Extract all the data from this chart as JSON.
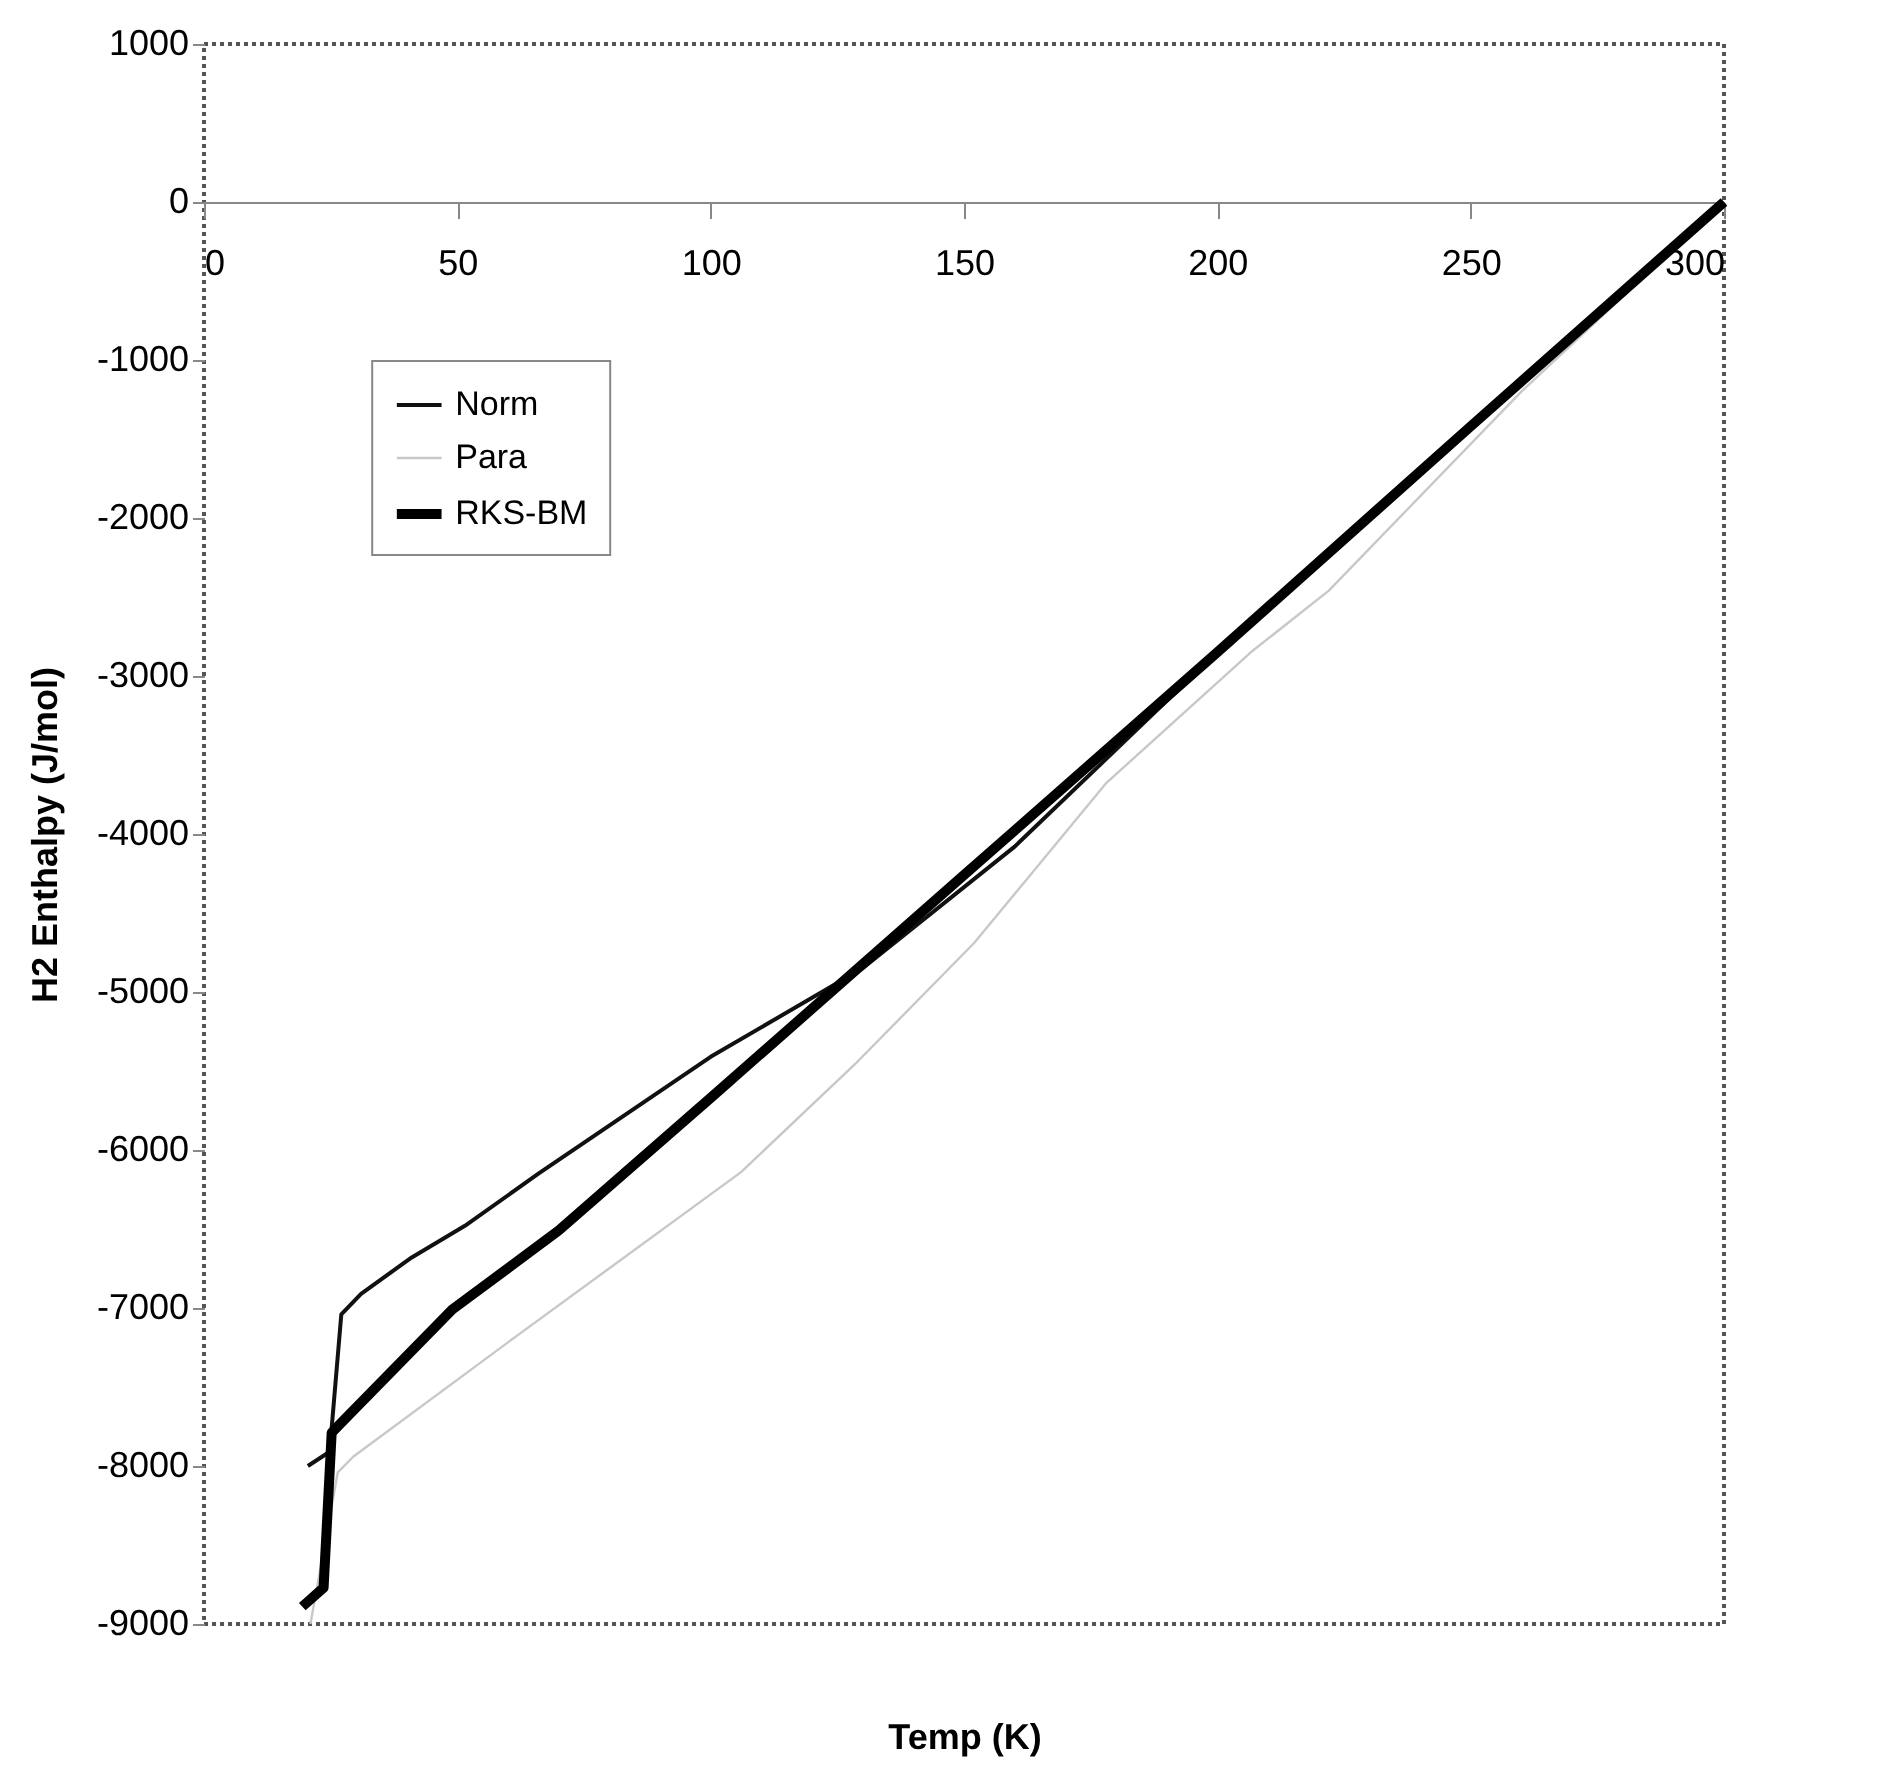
{
  "chart_data": {
    "type": "line",
    "xlabel": "Temp  (K)",
    "ylabel": "H2  Enthalpy  (J/mol)",
    "xlim": [
      0,
      300
    ],
    "xticks": [
      0,
      50,
      100,
      150,
      200,
      250,
      300
    ],
    "ylim": [
      -9000,
      1000
    ],
    "yticks": [
      -9000,
      -8000,
      -7000,
      -6000,
      -5000,
      -4000,
      -3000,
      -2000,
      -1000,
      0,
      1000
    ],
    "grid": false,
    "legend": "top left",
    "line_style": "solid",
    "marker": "none",
    "series": [
      {
        "name": "Norm",
        "color": "#111111",
        "x": [
          20.5,
          24.8,
          27.1,
          31,
          41,
          51.5,
          66,
          100,
          130,
          160,
          200,
          250,
          300
        ],
        "values": [
          -8000,
          -7910,
          -7040,
          -6910,
          -6680,
          -6480,
          -6150,
          -5410,
          -4850,
          -4080,
          -2850,
          -1420,
          0
        ]
      },
      {
        "name": "Para",
        "color": "#c8c8c8",
        "x": [
          21,
          26.4,
          29.5,
          62,
          106,
          129,
          152,
          178,
          206.6,
          222,
          260,
          300
        ],
        "values": [
          -9000,
          -8040,
          -7940,
          -7170,
          -6140,
          -5440,
          -4690,
          -3680,
          -2850,
          -2460,
          -1200,
          0
        ]
      },
      {
        "name": "RKS-BM",
        "color": "#000000",
        "x": [
          19.4,
          23.6,
          25.2,
          27,
          49,
          70,
          100,
          150,
          200,
          250,
          300
        ],
        "values": [
          -8890,
          -8770,
          -7790,
          -7730,
          -7010,
          -6510,
          -5670,
          -4260,
          -2850,
          -1420,
          0
        ]
      }
    ]
  }
}
